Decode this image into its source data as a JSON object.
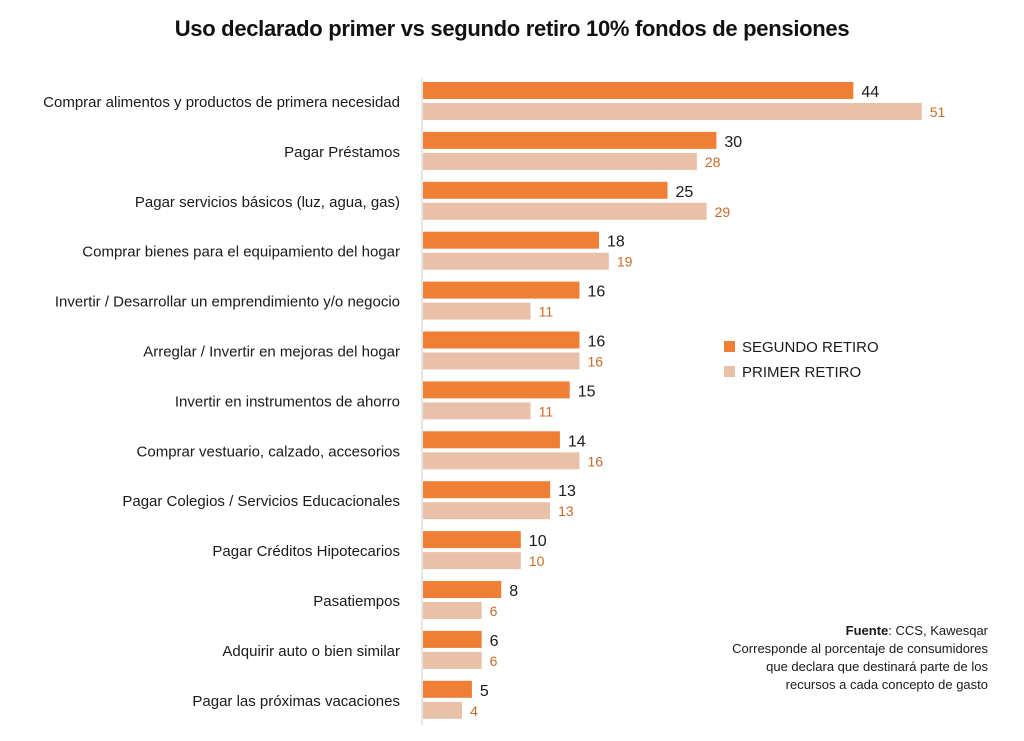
{
  "title": "Uso declarado primer vs segundo retiro 10% fondos de pensiones",
  "colors": {
    "segundo": "#EE7F35",
    "primer": "#E8C1A8",
    "primer_label": "#C86A28",
    "axis": "#cccccc"
  },
  "legend": {
    "segundo_label": "SEGUNDO RETIRO",
    "primer_label": "PRIMER RETIRO"
  },
  "source": {
    "label": "Fuente",
    "text": ": CCS, Kawesqar",
    "note_lines": [
      "Corresponde al porcentaje de consumidores",
      "que declara que destinará parte de los",
      "recursos a cada concepto de gasto"
    ]
  },
  "chart_data": {
    "type": "bar",
    "orientation": "horizontal",
    "title": "Uso declarado primer vs segundo retiro 10% fondos de pensiones",
    "legend_position": "right",
    "grid": false,
    "categories": [
      "Comprar alimentos y productos de primera necesidad",
      "Pagar Préstamos",
      "Pagar servicios básicos (luz, agua, gas)",
      "Comprar bienes para el equipamiento del hogar",
      "Invertir / Desarrollar un emprendimiento y/o negocio",
      "Arreglar / Invertir en mejoras del hogar",
      "Invertir en instrumentos de ahorro",
      "Comprar vestuario, calzado, accesorios",
      "Pagar Colegios / Servicios Educacionales",
      "Pagar Créditos Hipotecarios",
      "Pasatiempos",
      "Adquirir auto o bien similar",
      "Pagar las próximas vacaciones"
    ],
    "series": [
      {
        "name": "SEGUNDO RETIRO",
        "values": [
          44,
          30,
          25,
          18,
          16,
          16,
          15,
          14,
          13,
          10,
          8,
          6,
          5
        ]
      },
      {
        "name": "PRIMER RETIRO",
        "values": [
          51,
          28,
          29,
          19,
          11,
          16,
          11,
          16,
          13,
          10,
          6,
          6,
          4
        ]
      }
    ],
    "xlim": [
      0,
      100
    ]
  }
}
